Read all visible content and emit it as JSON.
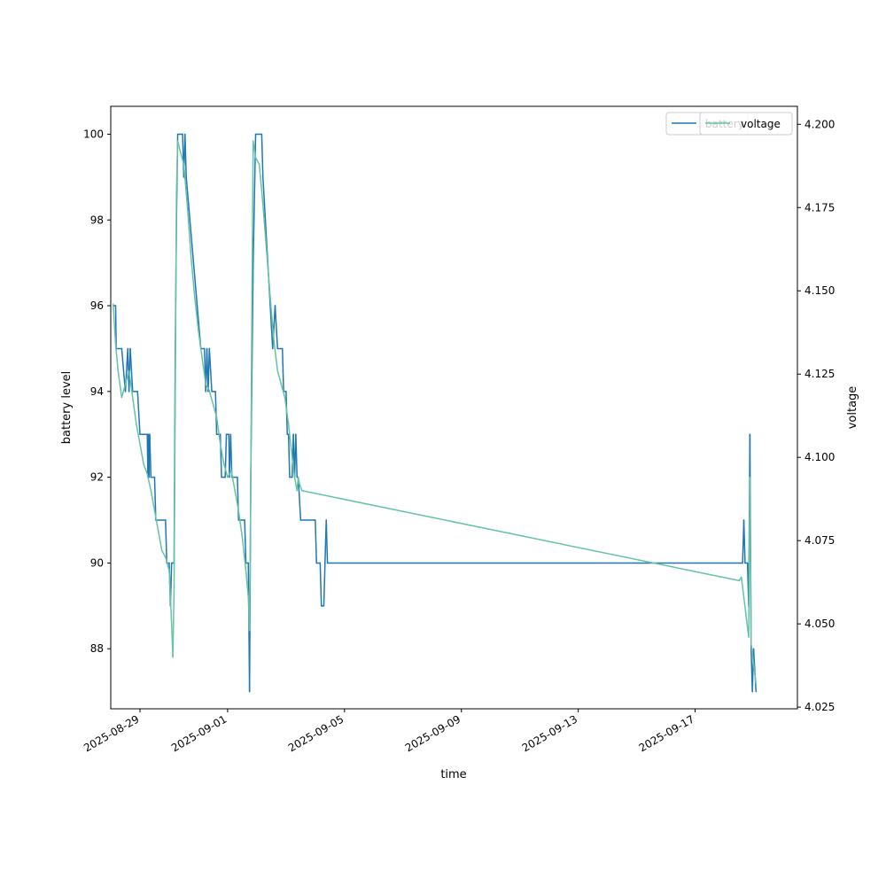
{
  "chart_data": {
    "type": "line",
    "title": "",
    "xlabel": "time",
    "ylabel_left": "battery level",
    "ylabel_right": "voltage",
    "x_range": [
      "2025-08-28 00:00",
      "2025-09-20 12:00"
    ],
    "x_ticks": [
      "2025-08-29",
      "2025-09-01",
      "2025-09-05",
      "2025-09-09",
      "2025-09-13",
      "2025-09-17"
    ],
    "ylim_left": [
      86.6,
      100.65
    ],
    "yticks_left": [
      88,
      90,
      92,
      94,
      96,
      98,
      100
    ],
    "ylim_right": [
      4.0245,
      4.2054
    ],
    "yticks_right": [
      "4.025",
      "4.050",
      "4.075",
      "4.100",
      "4.125",
      "4.150",
      "4.175",
      "4.200"
    ],
    "grid": false,
    "legend": {
      "placement": "top-right",
      "entries": [
        "battery",
        "voltage"
      ]
    },
    "colors": {
      "battery": "#1f77b4",
      "voltage": "#66c2a5"
    },
    "series": [
      {
        "name": "battery",
        "axis": "left",
        "points": [
          [
            "2025-08-28 02:00",
            96
          ],
          [
            "2025-08-28 04:00",
            96
          ],
          [
            "2025-08-28 04:30",
            95
          ],
          [
            "2025-08-28 09:00",
            95
          ],
          [
            "2025-08-28 12:00",
            94
          ],
          [
            "2025-08-28 14:00",
            95
          ],
          [
            "2025-08-28 15:00",
            94
          ],
          [
            "2025-08-28 16:00",
            95
          ],
          [
            "2025-08-28 18:00",
            94
          ],
          [
            "2025-08-28 22:00",
            94
          ],
          [
            "2025-08-29 00:00",
            93
          ],
          [
            "2025-08-29 06:00",
            93
          ],
          [
            "2025-08-29 06:30",
            92
          ],
          [
            "2025-08-29 07:00",
            93
          ],
          [
            "2025-08-29 07:30",
            92
          ],
          [
            "2025-08-29 08:00",
            93
          ],
          [
            "2025-08-29 09:00",
            92
          ],
          [
            "2025-08-29 12:00",
            92
          ],
          [
            "2025-08-29 13:00",
            91
          ],
          [
            "2025-08-29 21:00",
            91
          ],
          [
            "2025-08-29 22:00",
            90
          ],
          [
            "2025-08-30 00:00",
            90
          ],
          [
            "2025-08-30 01:00",
            89
          ],
          [
            "2025-08-30 02:00",
            90
          ],
          [
            "2025-08-30 04:00",
            90
          ],
          [
            "2025-08-30 05:00",
            95
          ],
          [
            "2025-08-30 06:00",
            98
          ],
          [
            "2025-08-30 07:00",
            100
          ],
          [
            "2025-08-30 11:00",
            100
          ],
          [
            "2025-08-30 12:00",
            99
          ],
          [
            "2025-08-30 13:00",
            100
          ],
          [
            "2025-08-30 14:00",
            99
          ],
          [
            "2025-08-30 17:00",
            98
          ],
          [
            "2025-08-30 20:00",
            97
          ],
          [
            "2025-08-30 23:00",
            96
          ],
          [
            "2025-08-31 02:00",
            95
          ],
          [
            "2025-08-31 05:00",
            95
          ],
          [
            "2025-08-31 06:00",
            94
          ],
          [
            "2025-08-31 07:00",
            95
          ],
          [
            "2025-08-31 08:00",
            94
          ],
          [
            "2025-08-31 09:00",
            95
          ],
          [
            "2025-08-31 11:00",
            94
          ],
          [
            "2025-08-31 14:00",
            94
          ],
          [
            "2025-08-31 15:00",
            93
          ],
          [
            "2025-08-31 18:00",
            93
          ],
          [
            "2025-08-31 19:00",
            92
          ],
          [
            "2025-08-31 22:00",
            92
          ],
          [
            "2025-08-31 23:00",
            93
          ],
          [
            "2025-09-01 01:00",
            93
          ],
          [
            "2025-09-01 01:30",
            92
          ],
          [
            "2025-09-01 02:30",
            93
          ],
          [
            "2025-09-01 03:30",
            92
          ],
          [
            "2025-09-01 08:00",
            92
          ],
          [
            "2025-09-01 09:00",
            91
          ],
          [
            "2025-09-01 14:00",
            91
          ],
          [
            "2025-09-01 15:00",
            90
          ],
          [
            "2025-09-01 17:00",
            90
          ],
          [
            "2025-09-01 18:00",
            87
          ],
          [
            "2025-09-01 19:00",
            92
          ],
          [
            "2025-09-01 21:00",
            97
          ],
          [
            "2025-09-01 23:00",
            100
          ],
          [
            "2025-09-02 04:00",
            100
          ],
          [
            "2025-09-02 05:00",
            99
          ],
          [
            "2025-09-02 07:00",
            98
          ],
          [
            "2025-09-02 09:00",
            97
          ],
          [
            "2025-09-02 11:00",
            96
          ],
          [
            "2025-09-02 13:00",
            95
          ],
          [
            "2025-09-02 15:00",
            96
          ],
          [
            "2025-09-02 17:00",
            95
          ],
          [
            "2025-09-02 21:00",
            95
          ],
          [
            "2025-09-02 22:00",
            94
          ],
          [
            "2025-09-03 00:00",
            94
          ],
          [
            "2025-09-03 01:00",
            93
          ],
          [
            "2025-09-03 02:00",
            93
          ],
          [
            "2025-09-03 03:00",
            92
          ],
          [
            "2025-09-03 05:00",
            92
          ],
          [
            "2025-09-03 06:00",
            93
          ],
          [
            "2025-09-03 07:00",
            92
          ],
          [
            "2025-09-03 08:00",
            93
          ],
          [
            "2025-09-03 09:00",
            92
          ],
          [
            "2025-09-03 10:00",
            92
          ],
          [
            "2025-09-03 12:00",
            91
          ],
          [
            "2025-09-03 23:00",
            91
          ],
          [
            "2025-09-04 00:00",
            91
          ],
          [
            "2025-09-04 01:00",
            90
          ],
          [
            "2025-09-04 04:00",
            90
          ],
          [
            "2025-09-04 05:00",
            89
          ],
          [
            "2025-09-04 07:00",
            89
          ],
          [
            "2025-09-04 08:00",
            90
          ],
          [
            "2025-09-04 09:00",
            91
          ],
          [
            "2025-09-04 10:00",
            90
          ],
          [
            "2025-09-18 15:00",
            90
          ],
          [
            "2025-09-18 16:00",
            91
          ],
          [
            "2025-09-18 17:00",
            90
          ],
          [
            "2025-09-18 19:00",
            90
          ],
          [
            "2025-09-18 20:00",
            89
          ],
          [
            "2025-09-18 21:00",
            93
          ],
          [
            "2025-09-18 22:00",
            88
          ],
          [
            "2025-09-18 23:00",
            87
          ],
          [
            "2025-09-19 00:00",
            88
          ],
          [
            "2025-09-19 02:00",
            87
          ]
        ]
      },
      {
        "name": "voltage",
        "axis": "right",
        "points": [
          [
            "2025-08-28 02:00",
            4.146
          ],
          [
            "2025-08-28 04:00",
            4.134
          ],
          [
            "2025-08-28 06:00",
            4.126
          ],
          [
            "2025-08-28 09:00",
            4.118
          ],
          [
            "2025-08-28 12:00",
            4.122
          ],
          [
            "2025-08-28 15:00",
            4.126
          ],
          [
            "2025-08-28 18:00",
            4.118
          ],
          [
            "2025-08-28 21:00",
            4.11
          ],
          [
            "2025-08-29 00:00",
            4.104
          ],
          [
            "2025-08-29 03:00",
            4.098
          ],
          [
            "2025-08-29 06:00",
            4.095
          ],
          [
            "2025-08-29 09:00",
            4.09
          ],
          [
            "2025-08-29 12:00",
            4.084
          ],
          [
            "2025-08-29 15:00",
            4.078
          ],
          [
            "2025-08-29 18:00",
            4.072
          ],
          [
            "2025-08-29 21:00",
            4.07
          ],
          [
            "2025-08-30 00:00",
            4.066
          ],
          [
            "2025-08-30 02:00",
            4.05
          ],
          [
            "2025-08-30 03:00",
            4.04
          ],
          [
            "2025-08-30 04:00",
            4.06
          ],
          [
            "2025-08-30 05:00",
            4.12
          ],
          [
            "2025-08-30 06:00",
            4.18
          ],
          [
            "2025-08-30 07:00",
            4.195
          ],
          [
            "2025-08-30 09:00",
            4.192
          ],
          [
            "2025-08-30 12:00",
            4.188
          ],
          [
            "2025-08-30 15:00",
            4.175
          ],
          [
            "2025-08-30 18:00",
            4.16
          ],
          [
            "2025-08-30 21:00",
            4.148
          ],
          [
            "2025-08-31 00:00",
            4.138
          ],
          [
            "2025-08-31 03:00",
            4.13
          ],
          [
            "2025-08-31 06:00",
            4.122
          ],
          [
            "2025-08-31 09:00",
            4.12
          ],
          [
            "2025-08-31 12:00",
            4.116
          ],
          [
            "2025-08-31 15:00",
            4.112
          ],
          [
            "2025-08-31 18:00",
            4.104
          ],
          [
            "2025-08-31 21:00",
            4.098
          ],
          [
            "2025-09-01 00:00",
            4.094
          ],
          [
            "2025-09-01 03:00",
            4.096
          ],
          [
            "2025-09-01 06:00",
            4.09
          ],
          [
            "2025-09-01 09:00",
            4.084
          ],
          [
            "2025-09-01 12:00",
            4.076
          ],
          [
            "2025-09-01 15:00",
            4.066
          ],
          [
            "2025-09-01 17:00",
            4.058
          ],
          [
            "2025-09-01 18:00",
            4.048
          ],
          [
            "2025-09-01 19:00",
            4.09
          ],
          [
            "2025-09-01 20:00",
            4.15
          ],
          [
            "2025-09-01 21:00",
            4.195
          ],
          [
            "2025-09-01 23:00",
            4.19
          ],
          [
            "2025-09-02 02:00",
            4.188
          ],
          [
            "2025-09-02 05:00",
            4.176
          ],
          [
            "2025-09-02 08:00",
            4.162
          ],
          [
            "2025-09-02 11:00",
            4.148
          ],
          [
            "2025-09-02 14:00",
            4.135
          ],
          [
            "2025-09-02 17:00",
            4.126
          ],
          [
            "2025-09-02 20:00",
            4.122
          ],
          [
            "2025-09-02 23:00",
            4.118
          ],
          [
            "2025-09-03 02:00",
            4.11
          ],
          [
            "2025-09-03 05:00",
            4.1
          ],
          [
            "2025-09-03 07:00",
            4.094
          ],
          [
            "2025-09-03 09:00",
            4.09
          ],
          [
            "2025-09-03 10:00",
            4.094
          ],
          [
            "2025-09-03 11:00",
            4.092
          ],
          [
            "2025-09-03 13:00",
            4.09
          ],
          [
            "2025-09-18 12:00",
            4.063
          ],
          [
            "2025-09-18 14:00",
            4.064
          ],
          [
            "2025-09-18 16:00",
            4.058
          ],
          [
            "2025-09-18 18:00",
            4.052
          ],
          [
            "2025-09-18 20:00",
            4.046
          ],
          [
            "2025-09-18 21:00",
            4.094
          ],
          [
            "2025-09-18 22:00",
            4.044
          ],
          [
            "2025-09-19 00:00",
            4.038
          ],
          [
            "2025-09-19 02:00",
            4.032
          ]
        ]
      }
    ]
  }
}
